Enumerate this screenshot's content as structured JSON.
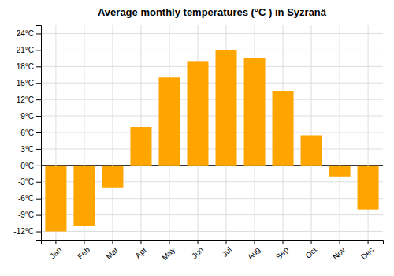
{
  "chart_data": {
    "type": "bar",
    "title": "Average monthly temperatures (°C ) in Syzranâ",
    "categories": [
      "Jan",
      "Feb",
      "Mar",
      "Apr",
      "May",
      "Jun",
      "Jul",
      "Aug",
      "Sep",
      "Oct",
      "Nov",
      "Dec"
    ],
    "values": [
      -12,
      -11,
      -4,
      7,
      16,
      19,
      21,
      19.5,
      13.5,
      5.5,
      -2,
      -8
    ],
    "color": "#FFA500",
    "ylim": [
      -13.5,
      25.5
    ],
    "yticks": [
      {
        "value": -12,
        "label": "-12°C"
      },
      {
        "value": -9,
        "label": "-9°C"
      },
      {
        "value": -6,
        "label": "-6°C"
      },
      {
        "value": -3,
        "label": "-3°C"
      },
      {
        "value": 0,
        "label": "0°C"
      },
      {
        "value": 3,
        "label": "3°C"
      },
      {
        "value": 6,
        "label": "6°C"
      },
      {
        "value": 9,
        "label": "9°C"
      },
      {
        "value": 12,
        "label": "12°C"
      },
      {
        "value": 15,
        "label": "15°C"
      },
      {
        "value": 18,
        "label": "18°C"
      },
      {
        "value": 21,
        "label": "21°C"
      },
      {
        "value": 24,
        "label": "24°C"
      }
    ],
    "grid": true
  }
}
